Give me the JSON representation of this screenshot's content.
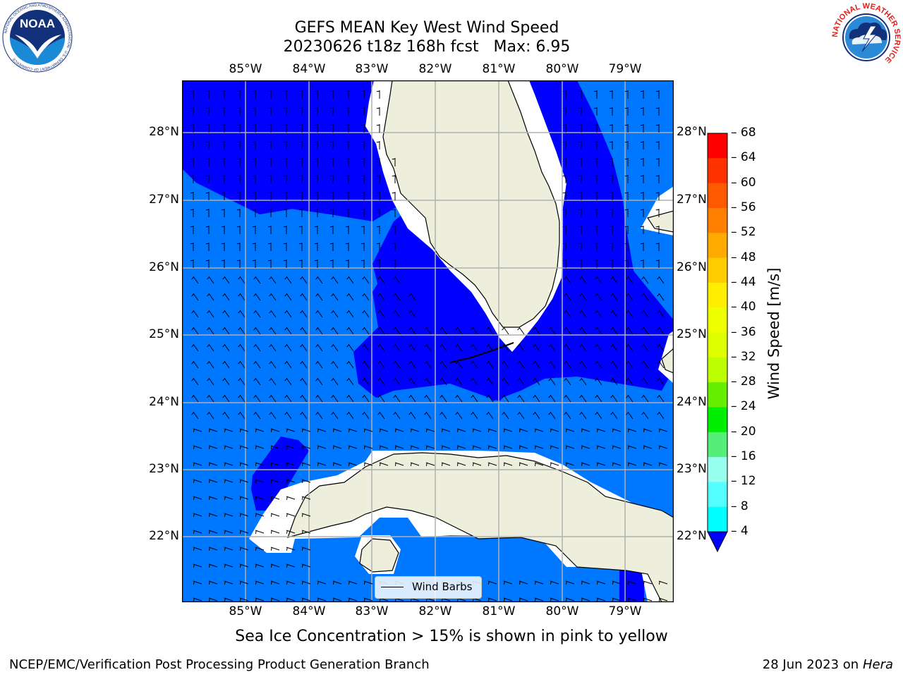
{
  "header": {
    "title_line1": "GEFS MEAN Key West Wind Speed",
    "title_line2": "20230626 t18z 168h fcst   Max: 6.95"
  },
  "logos": {
    "left": {
      "name": "noaa-logo",
      "text": "NOAA",
      "ring_text": "NATIONAL OCEANIC AND ATMOSPHERIC ADMINISTRATION · U.S. DEPARTMENT OF COMMERCE"
    },
    "right": {
      "name": "nws-logo",
      "ring_text": "NATIONAL WEATHER SERVICE"
    }
  },
  "map": {
    "lon_labels": [
      "85°W",
      "84°W",
      "83°W",
      "82°W",
      "81°W",
      "80°W",
      "79°W"
    ],
    "lat_labels": [
      "28°N",
      "27°N",
      "26°N",
      "25°N",
      "24°N",
      "23°N",
      "22°N"
    ],
    "legend_label": "Wind Barbs",
    "colors": {
      "water_low": "#0077ff",
      "water_lower": "#0000ff",
      "land": "#eeeedd",
      "coast_buffer": "#ffffff",
      "grid": "#b0b0b0"
    }
  },
  "colorbar": {
    "title": "Wind Speed [m/s]",
    "ticks": [
      "68",
      "64",
      "60",
      "56",
      "52",
      "48",
      "44",
      "40",
      "36",
      "32",
      "28",
      "24",
      "20",
      "16",
      "12",
      "8",
      "4"
    ],
    "colors_top_to_bottom": [
      "#ff0000",
      "#ff3300",
      "#ff5a00",
      "#ff8000",
      "#ffaa00",
      "#ffcc00",
      "#ffee00",
      "#eeff00",
      "#ddff00",
      "#bbff00",
      "#66ee00",
      "#00ee00",
      "#55ee77",
      "#99ffee",
      "#55ffff",
      "#00ffff",
      "#00ccff",
      "#0077ff"
    ],
    "under_color": "#0000ff"
  },
  "caption": "Sea Ice Concentration > 15% is shown in pink to yellow",
  "footer": {
    "left": "NCEP/EMC/Verification Post Processing Product Generation Branch",
    "date": "28 Jun 2023 on",
    "machine": "Hera"
  }
}
